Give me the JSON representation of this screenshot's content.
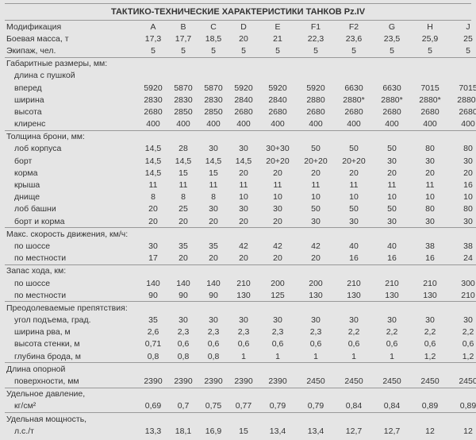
{
  "title": "ТАКТИКО-ТЕХНИЧЕСКИЕ ХАРАКТЕРИСТИКИ ТАНКОВ Pz.IV",
  "columns": [
    "A",
    "B",
    "C",
    "D",
    "E",
    "F1",
    "F2",
    "G",
    "H",
    "J"
  ],
  "rows": [
    {
      "label": "Модификация",
      "indent": 0,
      "values": [
        "A",
        "B",
        "C",
        "D",
        "E",
        "F1",
        "F2",
        "G",
        "H",
        "J"
      ],
      "header": true
    },
    {
      "label": "Боевая масса, т",
      "indent": 0,
      "values": [
        "17,3",
        "17,7",
        "18,5",
        "20",
        "21",
        "22,3",
        "23,6",
        "23,5",
        "25,9",
        "25"
      ]
    },
    {
      "label": "Экипаж, чел.",
      "indent": 0,
      "values": [
        "5",
        "5",
        "5",
        "5",
        "5",
        "5",
        "5",
        "5",
        "5",
        "5"
      ],
      "sep": true
    },
    {
      "label": "Габаритные размеры, мм:",
      "indent": 0,
      "values": [
        "",
        "",
        "",
        "",
        "",
        "",
        "",
        "",
        "",
        ""
      ]
    },
    {
      "label": "длина с пушкой",
      "indent": 1,
      "values": [
        "",
        "",
        "",
        "",
        "",
        "",
        "",
        "",
        "",
        ""
      ]
    },
    {
      "label": "вперед",
      "indent": 1,
      "values": [
        "5920",
        "5870",
        "5870",
        "5920",
        "5920",
        "5920",
        "6630",
        "6630",
        "7015",
        "7015"
      ]
    },
    {
      "label": "ширина",
      "indent": 1,
      "values": [
        "2830",
        "2830",
        "2830",
        "2840",
        "2840",
        "2880",
        "2880*",
        "2880*",
        "2880*",
        "2880*"
      ]
    },
    {
      "label": "высота",
      "indent": 1,
      "values": [
        "2680",
        "2850",
        "2850",
        "2680",
        "2680",
        "2680",
        "2680",
        "2680",
        "2680",
        "2680"
      ]
    },
    {
      "label": "клиренс",
      "indent": 1,
      "values": [
        "400",
        "400",
        "400",
        "400",
        "400",
        "400",
        "400",
        "400",
        "400",
        "400"
      ],
      "sep": true
    },
    {
      "label": "Толщина брони, мм:",
      "indent": 0,
      "values": [
        "",
        "",
        "",
        "",
        "",
        "",
        "",
        "",
        "",
        ""
      ]
    },
    {
      "label": "лоб корпуса",
      "indent": 1,
      "values": [
        "14,5",
        "28",
        "30",
        "30",
        "30+30",
        "50",
        "50",
        "50",
        "80",
        "80"
      ]
    },
    {
      "label": "борт",
      "indent": 1,
      "values": [
        "14,5",
        "14,5",
        "14,5",
        "14,5",
        "20+20",
        "20+20",
        "20+20",
        "30",
        "30",
        "30"
      ]
    },
    {
      "label": "корма",
      "indent": 1,
      "values": [
        "14,5",
        "15",
        "15",
        "20",
        "20",
        "20",
        "20",
        "20",
        "20",
        "20"
      ]
    },
    {
      "label": "крыша",
      "indent": 1,
      "values": [
        "11",
        "11",
        "11",
        "11",
        "11",
        "11",
        "11",
        "11",
        "11",
        "16"
      ]
    },
    {
      "label": "днище",
      "indent": 1,
      "values": [
        "8",
        "8",
        "8",
        "10",
        "10",
        "10",
        "10",
        "10",
        "10",
        "10"
      ]
    },
    {
      "label": "лоб башни",
      "indent": 1,
      "values": [
        "20",
        "25",
        "30",
        "30",
        "30",
        "50",
        "50",
        "50",
        "80",
        "80"
      ]
    },
    {
      "label": "борт и корма",
      "indent": 1,
      "values": [
        "20",
        "20",
        "20",
        "20",
        "20",
        "30",
        "30",
        "30",
        "30",
        "30"
      ],
      "sep": true
    },
    {
      "label": "Макс. скорость движения, км/ч:",
      "indent": 0,
      "values": [
        "",
        "",
        "",
        "",
        "",
        "",
        "",
        "",
        "",
        ""
      ]
    },
    {
      "label": "по шоссе",
      "indent": 1,
      "values": [
        "30",
        "35",
        "35",
        "42",
        "42",
        "42",
        "40",
        "40",
        "38",
        "38"
      ]
    },
    {
      "label": "по местности",
      "indent": 1,
      "values": [
        "17",
        "20",
        "20",
        "20",
        "20",
        "20",
        "16",
        "16",
        "16",
        "24"
      ],
      "sep": true
    },
    {
      "label": "Запас хода, км:",
      "indent": 0,
      "values": [
        "",
        "",
        "",
        "",
        "",
        "",
        "",
        "",
        "",
        ""
      ]
    },
    {
      "label": "по шоссе",
      "indent": 1,
      "values": [
        "140",
        "140",
        "140",
        "210",
        "200",
        "200",
        "210",
        "210",
        "210",
        "300"
      ]
    },
    {
      "label": "по местности",
      "indent": 1,
      "values": [
        "90",
        "90",
        "90",
        "130",
        "125",
        "130",
        "130",
        "130",
        "130",
        "210"
      ],
      "sep": true
    },
    {
      "label": "Преодолеваемые препятствия:",
      "indent": 0,
      "values": [
        "",
        "",
        "",
        "",
        "",
        "",
        "",
        "",
        "",
        ""
      ]
    },
    {
      "label": "угол подъема, град.",
      "indent": 1,
      "values": [
        "35",
        "30",
        "30",
        "30",
        "30",
        "30",
        "30",
        "30",
        "30",
        "30"
      ]
    },
    {
      "label": "ширина рва, м",
      "indent": 1,
      "values": [
        "2,6",
        "2,3",
        "2,3",
        "2,3",
        "2,3",
        "2,3",
        "2,2",
        "2,2",
        "2,2",
        "2,2"
      ]
    },
    {
      "label": "высота стенки, м",
      "indent": 1,
      "values": [
        "0,71",
        "0,6",
        "0,6",
        "0,6",
        "0,6",
        "0,6",
        "0,6",
        "0,6",
        "0,6",
        "0,6"
      ]
    },
    {
      "label": "глубина брода, м",
      "indent": 1,
      "values": [
        "0,8",
        "0,8",
        "0,8",
        "1",
        "1",
        "1",
        "1",
        "1",
        "1,2",
        "1,2"
      ],
      "sep": true
    },
    {
      "label": "Длина опорной",
      "indent": 0,
      "values": [
        "",
        "",
        "",
        "",
        "",
        "",
        "",
        "",
        "",
        ""
      ]
    },
    {
      "label": "поверхности, мм",
      "indent": 1,
      "values": [
        "2390",
        "2390",
        "2390",
        "2390",
        "2390",
        "2450",
        "2450",
        "2450",
        "2450",
        "2450"
      ],
      "sep": true
    },
    {
      "label": "Удельное давление,",
      "indent": 0,
      "values": [
        "",
        "",
        "",
        "",
        "",
        "",
        "",
        "",
        "",
        ""
      ]
    },
    {
      "label": "кг/см²",
      "indent": 1,
      "values": [
        "0,69",
        "0,7",
        "0,75",
        "0,77",
        "0,79",
        "0,79",
        "0,84",
        "0,84",
        "0,89",
        "0,89"
      ],
      "sep": true
    },
    {
      "label": "Удельная мощность,",
      "indent": 0,
      "values": [
        "",
        "",
        "",
        "",
        "",
        "",
        "",
        "",
        "",
        ""
      ]
    },
    {
      "label": "л.с./т",
      "indent": 1,
      "values": [
        "13,3",
        "18,1",
        "16,9",
        "15",
        "13,4",
        "13,4",
        "12,7",
        "12,7",
        "12",
        "12"
      ]
    }
  ],
  "style": {
    "background": "#e5e5e5",
    "border_color": "#999999",
    "text_color": "#333333",
    "font_size_body": 10.5,
    "font_size_title": 11
  }
}
